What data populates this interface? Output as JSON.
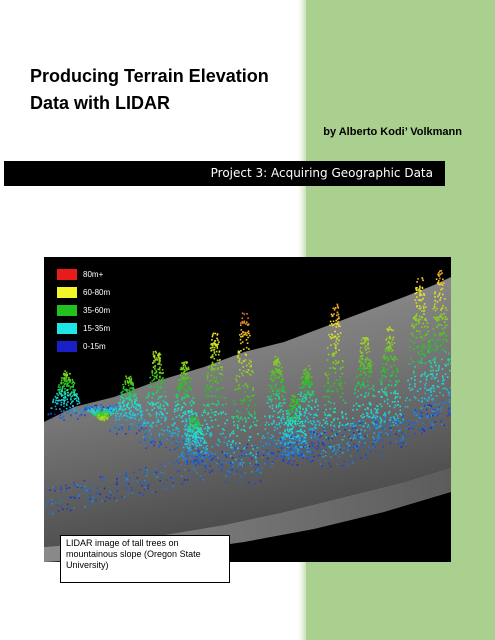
{
  "title_lines": [
    "Producing Terrain Elevation",
    "Data with LIDAR"
  ],
  "author": "by Alberto Kodi’ Volkmann",
  "project": "Project 3:  Acquiring Geographic Data",
  "figure": {
    "legend": [
      {
        "label": "80m+",
        "color": "#e81a1a"
      },
      {
        "label": "60-80m",
        "color": "#f4f42a"
      },
      {
        "label": "35-60m",
        "color": "#22c21e"
      },
      {
        "label": "15-35m",
        "color": "#1ee6e6"
      },
      {
        "label": "0-15m",
        "color": "#1a20c8"
      }
    ],
    "caption": "LIDAR image of tall trees on mountainous slope (Oregon State University)"
  }
}
